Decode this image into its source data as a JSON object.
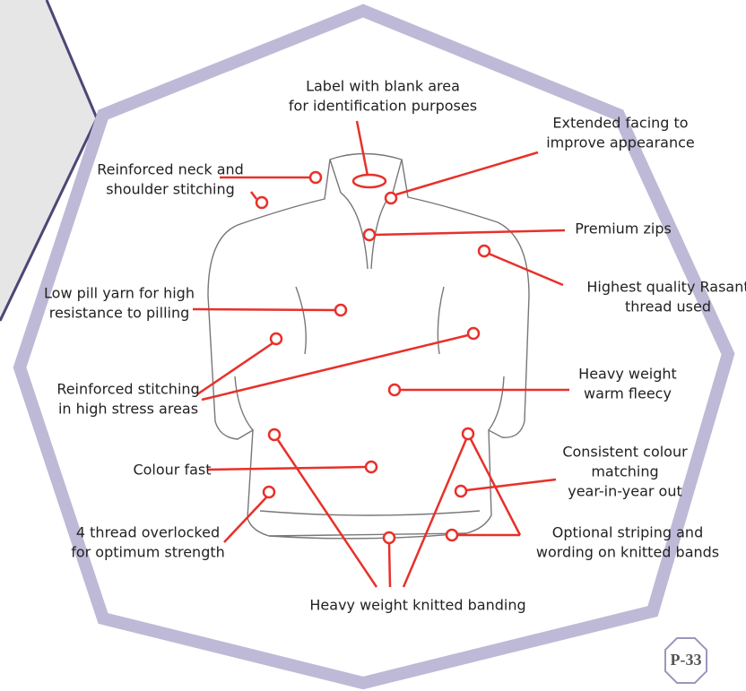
{
  "callouts": [
    {
      "lines": [
        "Label with blank area",
        "for identification purposes"
      ]
    },
    {
      "lines": [
        "Extended facing to",
        "improve appearance"
      ]
    },
    {
      "lines": [
        "Reinforced neck and",
        "shoulder stitching"
      ]
    },
    {
      "lines": [
        "Premium zips"
      ]
    },
    {
      "lines": [
        "Highest quality Rasant",
        "thread used"
      ]
    },
    {
      "lines": [
        "Low pill yarn for high",
        "resistance to pilling"
      ]
    },
    {
      "lines": [
        "Reinforced stitching",
        "in high stress areas"
      ]
    },
    {
      "lines": [
        "Heavy weight",
        "warm fleecy"
      ]
    },
    {
      "lines": [
        "Colour fast"
      ]
    },
    {
      "lines": [
        "Consistent colour",
        "matching",
        "year-in-year out"
      ]
    },
    {
      "lines": [
        "4 thread overlocked",
        "for optimum strength"
      ]
    },
    {
      "lines": [
        "Optional striping and",
        "wording on knitted bands"
      ]
    },
    {
      "lines": [
        "Heavy weight knitted banding"
      ]
    }
  ],
  "page_badge": "P-33"
}
